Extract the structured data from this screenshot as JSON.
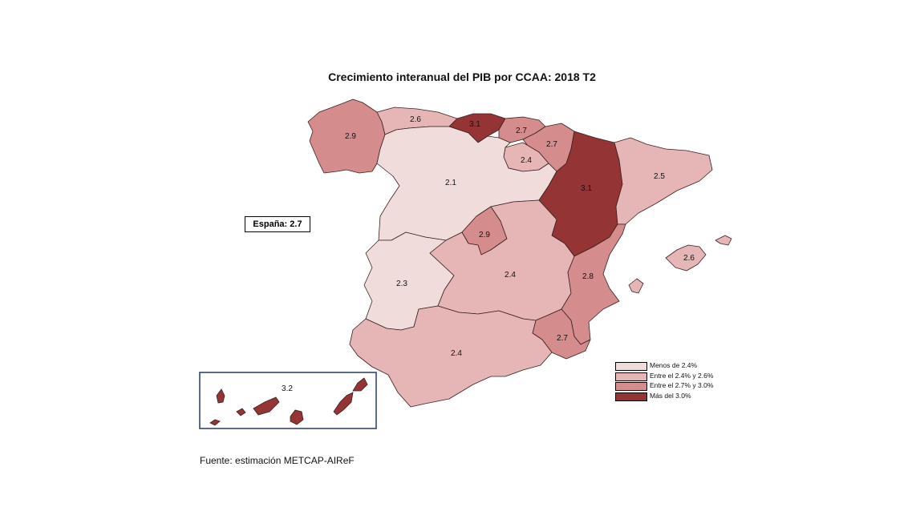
{
  "title": "Crecimiento interanual del PIB por CCAA: 2018 T2",
  "spain_total": "España:  2.7",
  "source": "Fuente: estimación METCAP-AIReF",
  "colors": {
    "c1": "#f1dcdc",
    "c2": "#e6b5b5",
    "c3": "#d58c8c",
    "c4": "#943434",
    "border": "#3a2020",
    "inset_frame": "#33466e"
  },
  "legend": [
    {
      "label": "Menos de 2.4%",
      "color": "#f1dcdc"
    },
    {
      "label": "Entre el 2.4% y 2.6%",
      "color": "#e6b5b5"
    },
    {
      "label": "Entre el 2.7% y 3.0%",
      "color": "#d58c8c"
    },
    {
      "label": "Más del 3.0%",
      "color": "#943434"
    }
  ],
  "regions": [
    {
      "id": "galicia",
      "value": "2.9",
      "class": "c3"
    },
    {
      "id": "asturias",
      "value": "2.6",
      "class": "c2"
    },
    {
      "id": "cantabria",
      "value": "3.1",
      "class": "c4"
    },
    {
      "id": "pais-vasco",
      "value": "2.7",
      "class": "c3"
    },
    {
      "id": "navarra",
      "value": "2.7",
      "class": "c3"
    },
    {
      "id": "la-rioja",
      "value": "2.4",
      "class": "c2"
    },
    {
      "id": "castilla-y-leon",
      "value": "2.1",
      "class": "c1"
    },
    {
      "id": "aragon",
      "value": "3.1",
      "class": "c4"
    },
    {
      "id": "cataluna",
      "value": "2.5",
      "class": "c2"
    },
    {
      "id": "madrid",
      "value": "2.9",
      "class": "c3"
    },
    {
      "id": "extremadura",
      "value": "2.3",
      "class": "c1"
    },
    {
      "id": "castilla-la-mancha",
      "value": "2.4",
      "class": "c2"
    },
    {
      "id": "comunidad-valenciana",
      "value": "2.8",
      "class": "c3"
    },
    {
      "id": "murcia",
      "value": "2.7",
      "class": "c3"
    },
    {
      "id": "andalucia",
      "value": "2.4",
      "class": "c2"
    },
    {
      "id": "baleares",
      "value": "2.6",
      "class": "c2"
    },
    {
      "id": "canarias",
      "value": "3.2",
      "class": "c4"
    }
  ]
}
